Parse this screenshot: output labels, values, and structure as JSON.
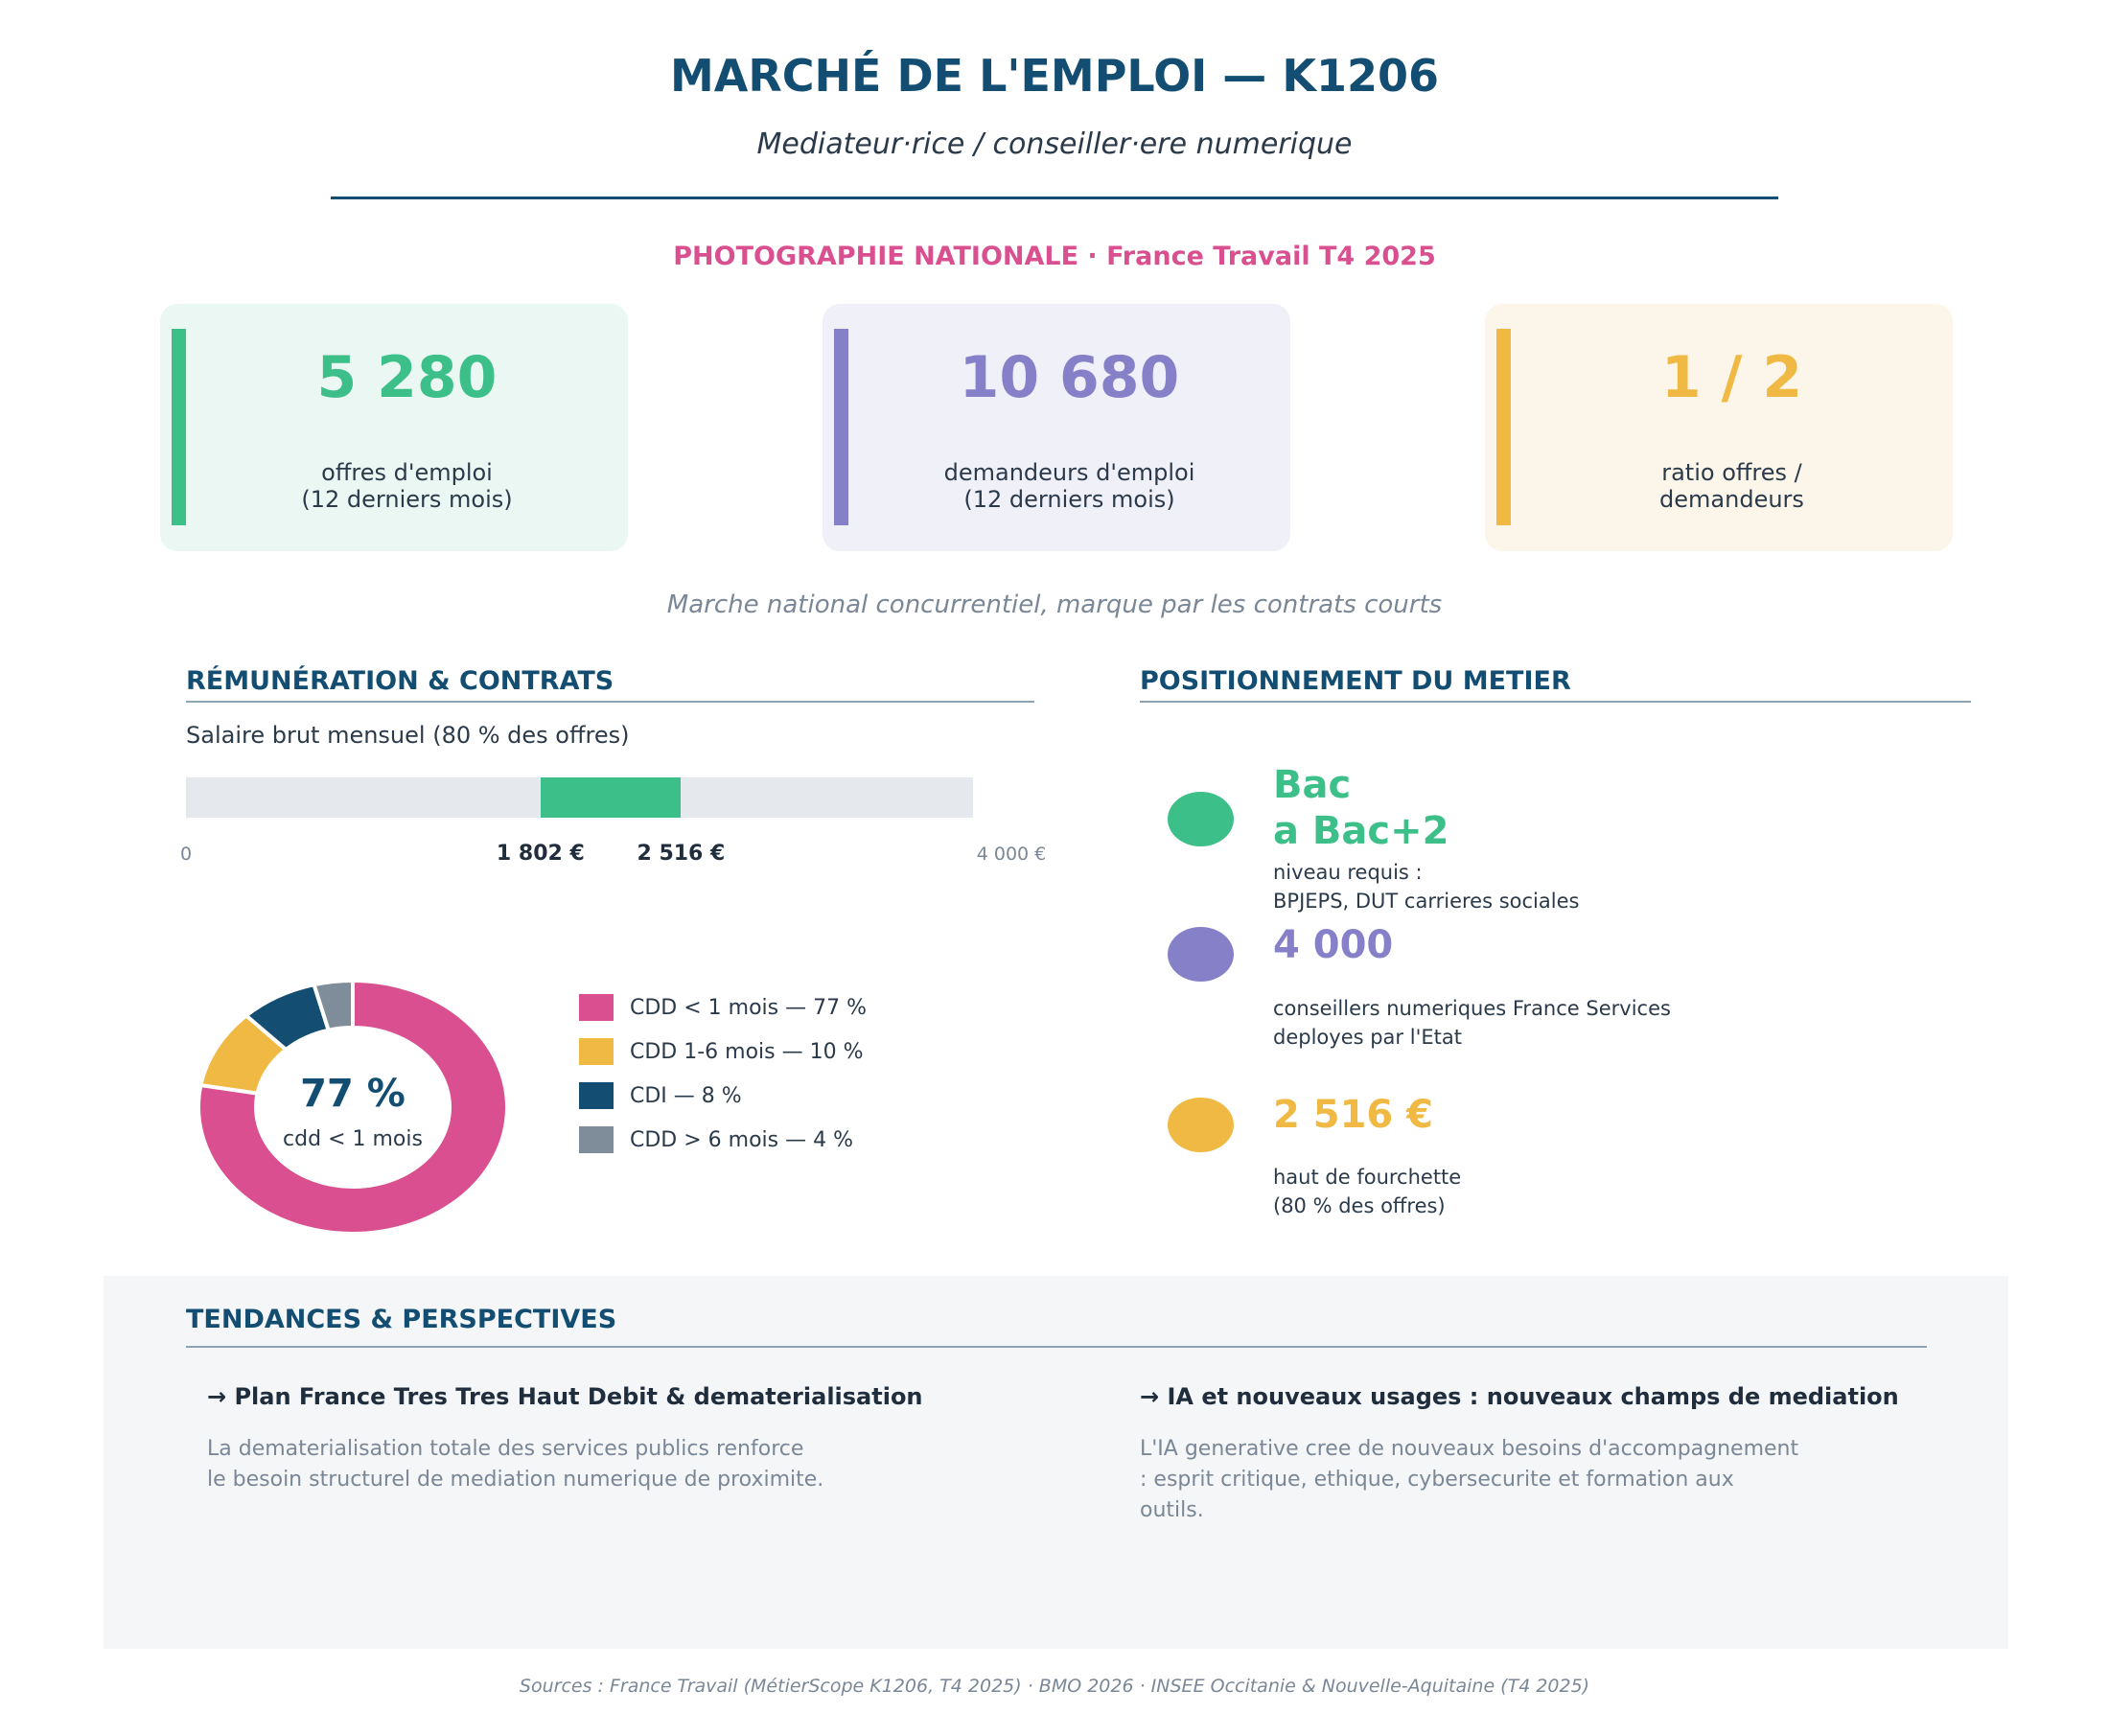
{
  "header": {
    "title": "MARCHÉ DE L'EMPLOI — K1206",
    "subtitle": "Mediateur·rice / conseiller·ere numerique",
    "kicker": "PHOTOGRAPHIE NATIONALE  ·  France Travail T4 2025"
  },
  "kpis": [
    {
      "value": "5 280",
      "label_line1": "offres d'emploi",
      "label_line2": "(12 derniers mois)",
      "color": "#3dbf8a",
      "bg": "#eaf7f2"
    },
    {
      "value": "10 680",
      "label_line1": "demandeurs d'emploi",
      "label_line2": "(12 derniers mois)",
      "color": "#8580c8",
      "bg": "#f0f0f9"
    },
    {
      "value": "1 / 2",
      "label_line1": "ratio offres /",
      "label_line2": "demandeurs",
      "color": "#efb943",
      "bg": "#fcf6ea"
    }
  ],
  "kpi_note": "Marche national concurrentiel, marque par les contrats courts",
  "remuneration": {
    "heading": "RÉMUNÉRATION & CONTRATS",
    "salary_label": "Salaire brut mensuel (80 % des offres)",
    "axis_min_label": "0",
    "axis_max_label": "4 000 €",
    "low_label": "1 802 €",
    "high_label": "2 516 €"
  },
  "donut": {
    "center_value": "77 %",
    "center_label": "cdd < 1 mois"
  },
  "chart_data": [
    {
      "type": "bar",
      "title": "Salaire brut mensuel (80 % des offres)",
      "xlim": [
        0,
        4000
      ],
      "range": {
        "low": 1802,
        "high": 2516
      },
      "tick_labels": [
        "0",
        "1 802 €",
        "2 516 €",
        "4 000 €"
      ],
      "colors": {
        "range": "#3dbf8a",
        "track": "#e5e9ed"
      }
    },
    {
      "type": "pie",
      "categories": [
        "CDD < 1 mois — 77 %",
        "CDD 1-6 mois — 10 %",
        "CDI — 8 %",
        "CDD > 6 mois — 4 %"
      ],
      "values": [
        77,
        10,
        8,
        4
      ],
      "colors": [
        "#d94f8f",
        "#efb943",
        "#134e72",
        "#7f8c9a"
      ],
      "legend": "right"
    }
  ],
  "positionnement": {
    "heading": "POSITIONNEMENT DU METIER",
    "items": [
      {
        "value_line1": "Bac",
        "value_line2": "a Bac+2",
        "desc_line1": "niveau requis :",
        "desc_line2": "BPJEPS, DUT carrieres sociales",
        "color": "#3dbf8a"
      },
      {
        "value_line1": "4 000",
        "desc_line1": "conseillers numeriques France Services",
        "desc_line2": "deployes par l'Etat",
        "color": "#8580c8"
      },
      {
        "value_line1": "2 516 €",
        "desc_line1": "haut de fourchette",
        "desc_line2": "(80 % des offres)",
        "color": "#efb943"
      }
    ]
  },
  "tendances": {
    "heading": "TENDANCES & PERSPECTIVES",
    "items": [
      {
        "title": "→ Plan France Tres Tres Haut Debit & dematerialisation",
        "text_line1": "La dematerialisation totale des services publics renforce",
        "text_line2": "le besoin structurel de mediation numerique de proximite.",
        "text_line3": ""
      },
      {
        "title": "→ IA et nouveaux usages : nouveaux champs de mediation",
        "text_line1": "L'IA generative cree de nouveaux besoins d'accompagnement",
        "text_line2": ": esprit critique, ethique, cybersecurite et formation aux",
        "text_line3": "outils."
      }
    ]
  },
  "sources": "Sources : France Travail (MétierScope K1206, T4 2025) · BMO 2026 · INSEE Occitanie & Nouvelle-Aquitaine (T4 2025)"
}
